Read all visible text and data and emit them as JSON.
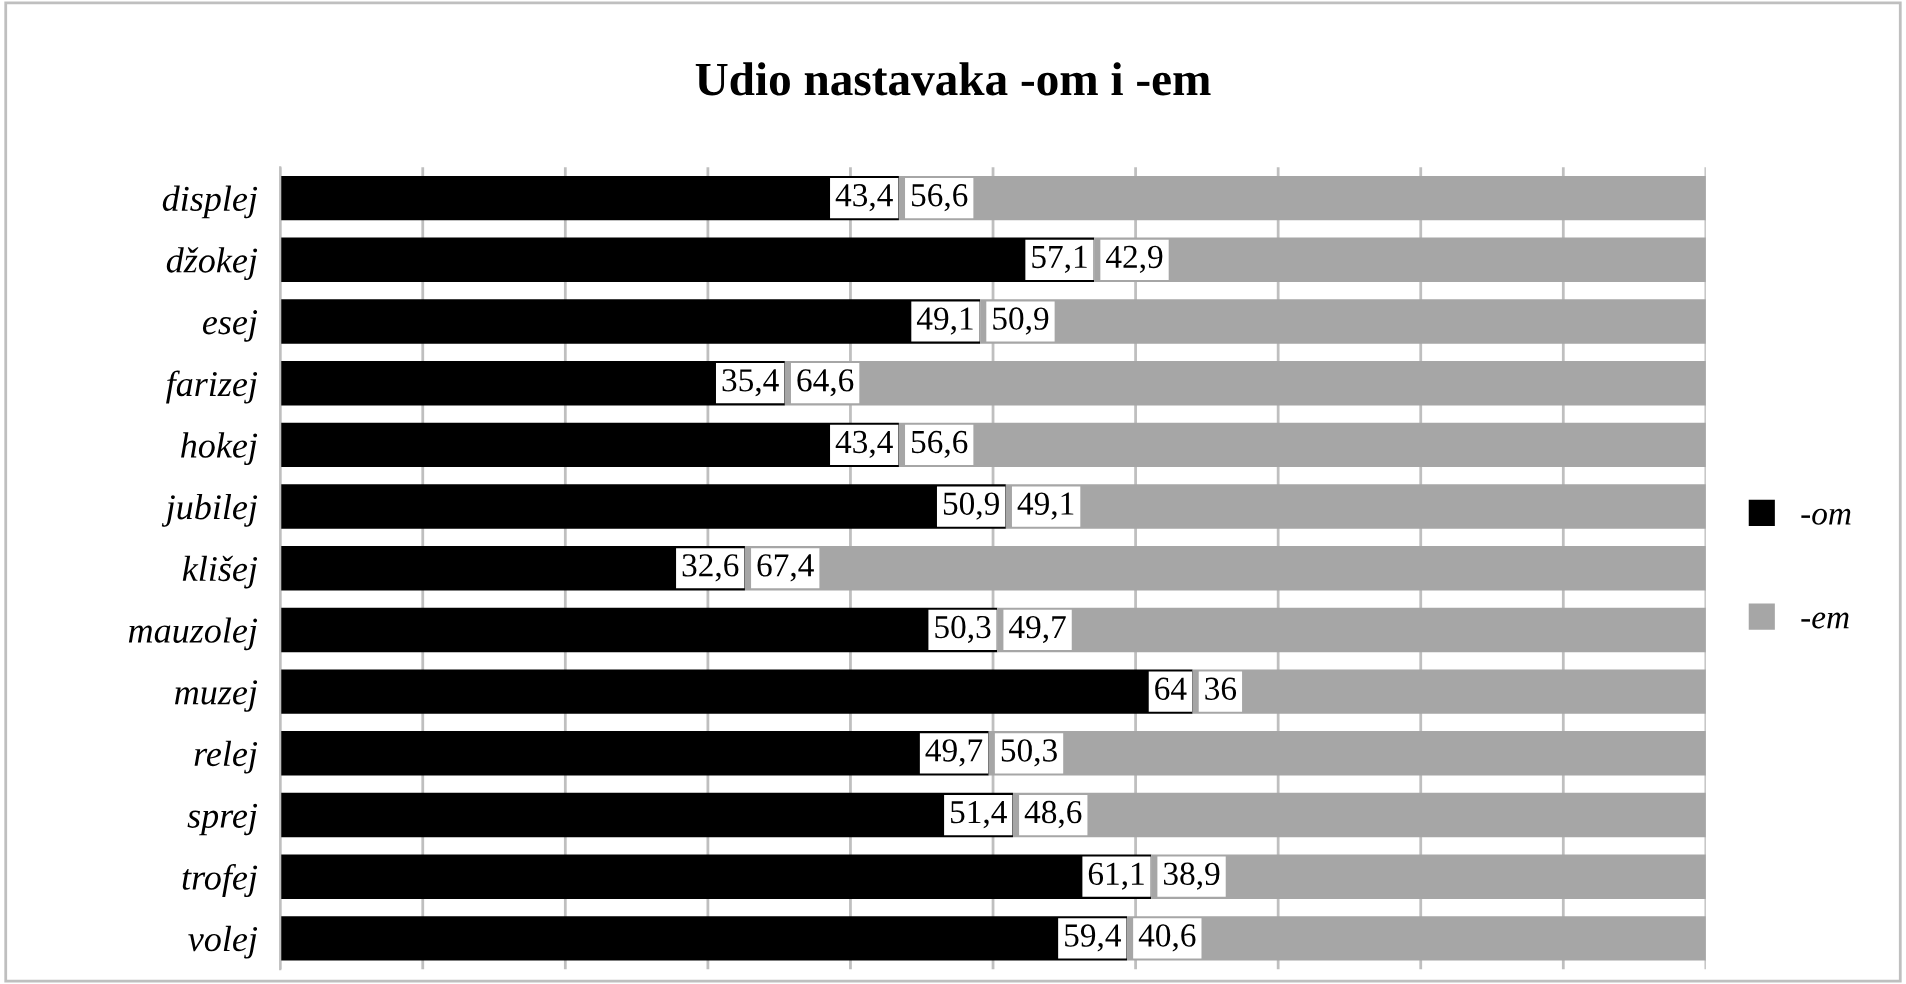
{
  "chart_data": {
    "type": "bar",
    "orientation": "horizontal",
    "stacked": true,
    "title": "Udio nastavaka -om i -em",
    "categories": [
      "displej",
      "džokej",
      "esej",
      "farizej",
      "hokej",
      "jubilej",
      "klišej",
      "mauzolej",
      "muzej",
      "relej",
      "sprej",
      "trofej",
      "volej"
    ],
    "series": [
      {
        "name": "-om",
        "color": "#000000",
        "values": [
          43.4,
          57.1,
          49.1,
          35.4,
          43.4,
          50.9,
          32.6,
          50.3,
          64,
          49.7,
          51.4,
          61.1,
          59.4
        ],
        "value_labels": [
          "43,4",
          "57,1",
          "49,1",
          "35,4",
          "43,4",
          "50,9",
          "32,6",
          "50,3",
          "64",
          "49,7",
          "51,4",
          "61,1",
          "59,4"
        ]
      },
      {
        "name": "-em",
        "color": "#a6a6a6",
        "values": [
          56.6,
          42.9,
          50.9,
          64.6,
          56.6,
          49.1,
          67.4,
          49.7,
          36,
          50.3,
          48.6,
          38.9,
          40.6
        ],
        "value_labels": [
          "56,6",
          "42,9",
          "50,9",
          "64,6",
          "56,6",
          "49,1",
          "67,4",
          "49,7",
          "36",
          "50,3",
          "48,6",
          "38,9",
          "40,6"
        ]
      }
    ],
    "xlim": [
      0,
      100
    ],
    "xticks": [
      {
        "value": 0,
        "label": null
      },
      {
        "value": 10,
        "label": null
      },
      {
        "value": 20,
        "label": null
      },
      {
        "value": 30,
        "label": null
      },
      {
        "value": 40,
        "label": null
      },
      {
        "value": 50,
        "label": null
      },
      {
        "value": 60,
        "label": null
      },
      {
        "value": 70,
        "label": null
      },
      {
        "value": 80,
        "label": null
      },
      {
        "value": 90,
        "label": null
      },
      {
        "value": 100,
        "label": null
      }
    ],
    "tick_labels": "y",
    "grid": "x",
    "legend": "right"
  }
}
